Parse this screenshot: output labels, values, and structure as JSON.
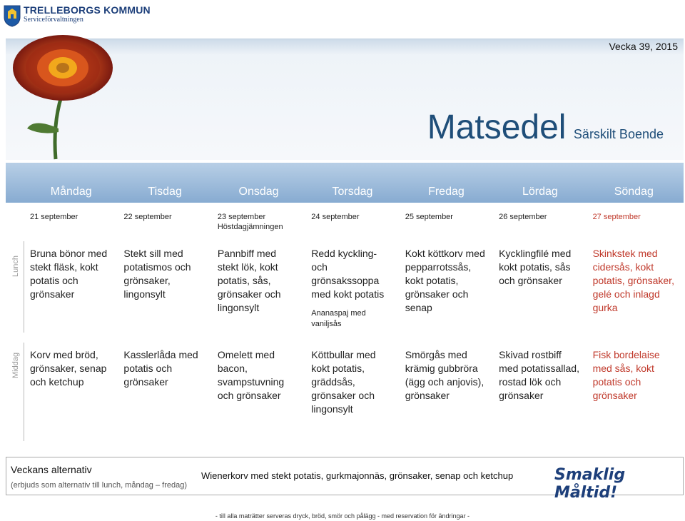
{
  "logo": {
    "title": "TRELLEBORGS KOMMUN",
    "subtitle": "Serviceförvaltningen"
  },
  "header": {
    "week": "Vecka 39, 2015",
    "title": "Matsedel",
    "subtitle": "Särskilt Boende"
  },
  "days": [
    "Måndag",
    "Tisdag",
    "Onsdag",
    "Torsdag",
    "Fredag",
    "Lördag",
    "Söndag"
  ],
  "dates": [
    {
      "date": "21 september",
      "note": ""
    },
    {
      "date": "22 september",
      "note": ""
    },
    {
      "date": "23 september",
      "note": "Höstdagjämningen"
    },
    {
      "date": "24 september",
      "note": ""
    },
    {
      "date": "25 september",
      "note": ""
    },
    {
      "date": "26 september",
      "note": ""
    },
    {
      "date": "27 september",
      "note": ""
    }
  ],
  "lunch": {
    "label": "Lunch",
    "items": [
      {
        "dish": "Bruna bönor med stekt fläsk, kokt potatis och grönsaker",
        "extra": ""
      },
      {
        "dish": "Stekt sill med potatismos och grönsaker, lingonsylt",
        "extra": ""
      },
      {
        "dish": "Pannbiff med stekt lök, kokt potatis, sås, grönsaker och lingonsylt",
        "extra": ""
      },
      {
        "dish": "Redd kyckling- och grönsakssoppa med kokt potatis",
        "extra": "Ananaspaj med vaniljsås"
      },
      {
        "dish": "Kokt köttkorv med pepparrotssås, kokt potatis, grönsaker och senap",
        "extra": ""
      },
      {
        "dish": "Kycklingfilé med kokt potatis, sås och grönsaker",
        "extra": ""
      },
      {
        "dish": "Skinkstek med cidersås, kokt potatis, grönsaker, gelé och inlagd gurka",
        "extra": ""
      }
    ]
  },
  "dinner": {
    "label": "Middag",
    "items": [
      {
        "dish": "Korv med bröd, grönsaker, senap och ketchup"
      },
      {
        "dish": "Kasslerlåda med potatis och grönsaker"
      },
      {
        "dish": "Omelett med bacon, svampstuvning och grönsaker"
      },
      {
        "dish": "Köttbullar med kokt potatis, gräddsås, grönsaker och lingonsylt"
      },
      {
        "dish": "Smörgås med krämig gubbröra (ägg och anjovis), grönsaker"
      },
      {
        "dish": "Skivad rostbiff med potatissallad, rostad lök och grönsaker"
      },
      {
        "dish": "Fisk bordelaise med sås, kokt potatis och grönsaker"
      }
    ]
  },
  "alternative": {
    "title": "Veckans alternativ",
    "note": "(erbjuds som alternativ till lunch, måndag – fredag)",
    "dish": "Wienerkorv med stekt potatis, gurkmajonnäs, grönsaker, senap och ketchup",
    "greeting": "Smaklig Måltid!"
  },
  "footer": "- till alla maträtter serveras dryck, bröd, smör och pålägg - med reservation för ändringar -",
  "colors": {
    "accent": "#1f4e79",
    "sunday": "#c0392b",
    "days_bar": "#87abd1"
  }
}
